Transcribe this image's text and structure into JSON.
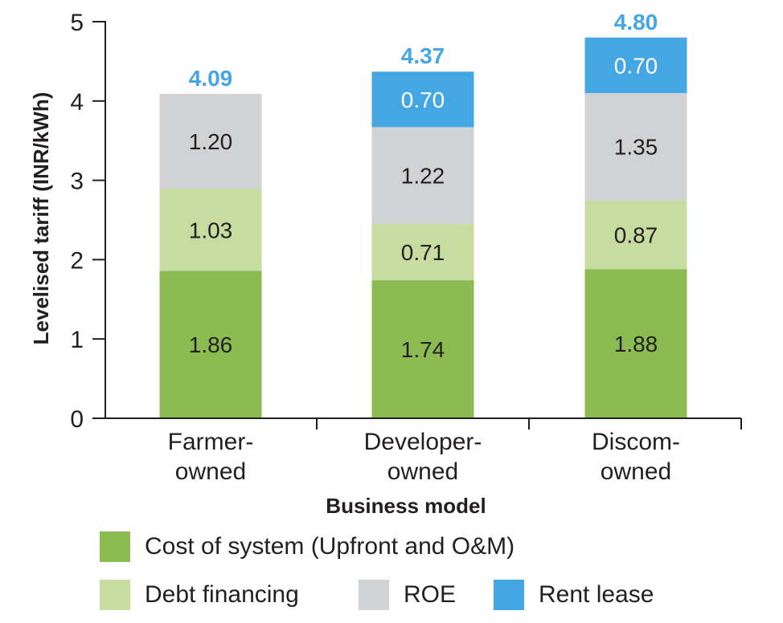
{
  "chart_data": {
    "type": "bar",
    "stacked": true,
    "categories": [
      [
        "Farmer-",
        "owned"
      ],
      [
        "Developer-",
        "owned"
      ],
      [
        "Discom-",
        "owned"
      ]
    ],
    "series": [
      {
        "name": "Cost of system (Upfront and O&M)",
        "color": "#8cbb51",
        "values": [
          1.86,
          1.74,
          1.88
        ],
        "labels": [
          "1.86",
          "1.74",
          "1.88"
        ]
      },
      {
        "name": "Debt financing",
        "color": "#c6dca0",
        "values": [
          1.03,
          0.71,
          0.87
        ],
        "labels": [
          "1.03",
          "0.71",
          "0.87"
        ]
      },
      {
        "name": "ROE",
        "color": "#d1d2d4",
        "values": [
          1.2,
          1.22,
          1.35
        ],
        "labels": [
          "1.20",
          "1.22",
          "1.35"
        ]
      },
      {
        "name": "Rent lease",
        "color": "#44a7e4",
        "values": [
          0,
          0.7,
          0.7
        ],
        "labels": [
          "",
          "0.70",
          "0.70"
        ]
      }
    ],
    "totals": [
      "4.09",
      "4.37",
      "4.80"
    ],
    "total_color": "#44a7e4",
    "xlabel": "Business model",
    "ylabel": "Levelised tariff (INR/kWh)",
    "ylim": [
      0,
      5
    ],
    "yticks": [
      "0",
      "1",
      "2",
      "3",
      "4",
      "5"
    ],
    "grid": false,
    "legend_position": "bottom"
  }
}
